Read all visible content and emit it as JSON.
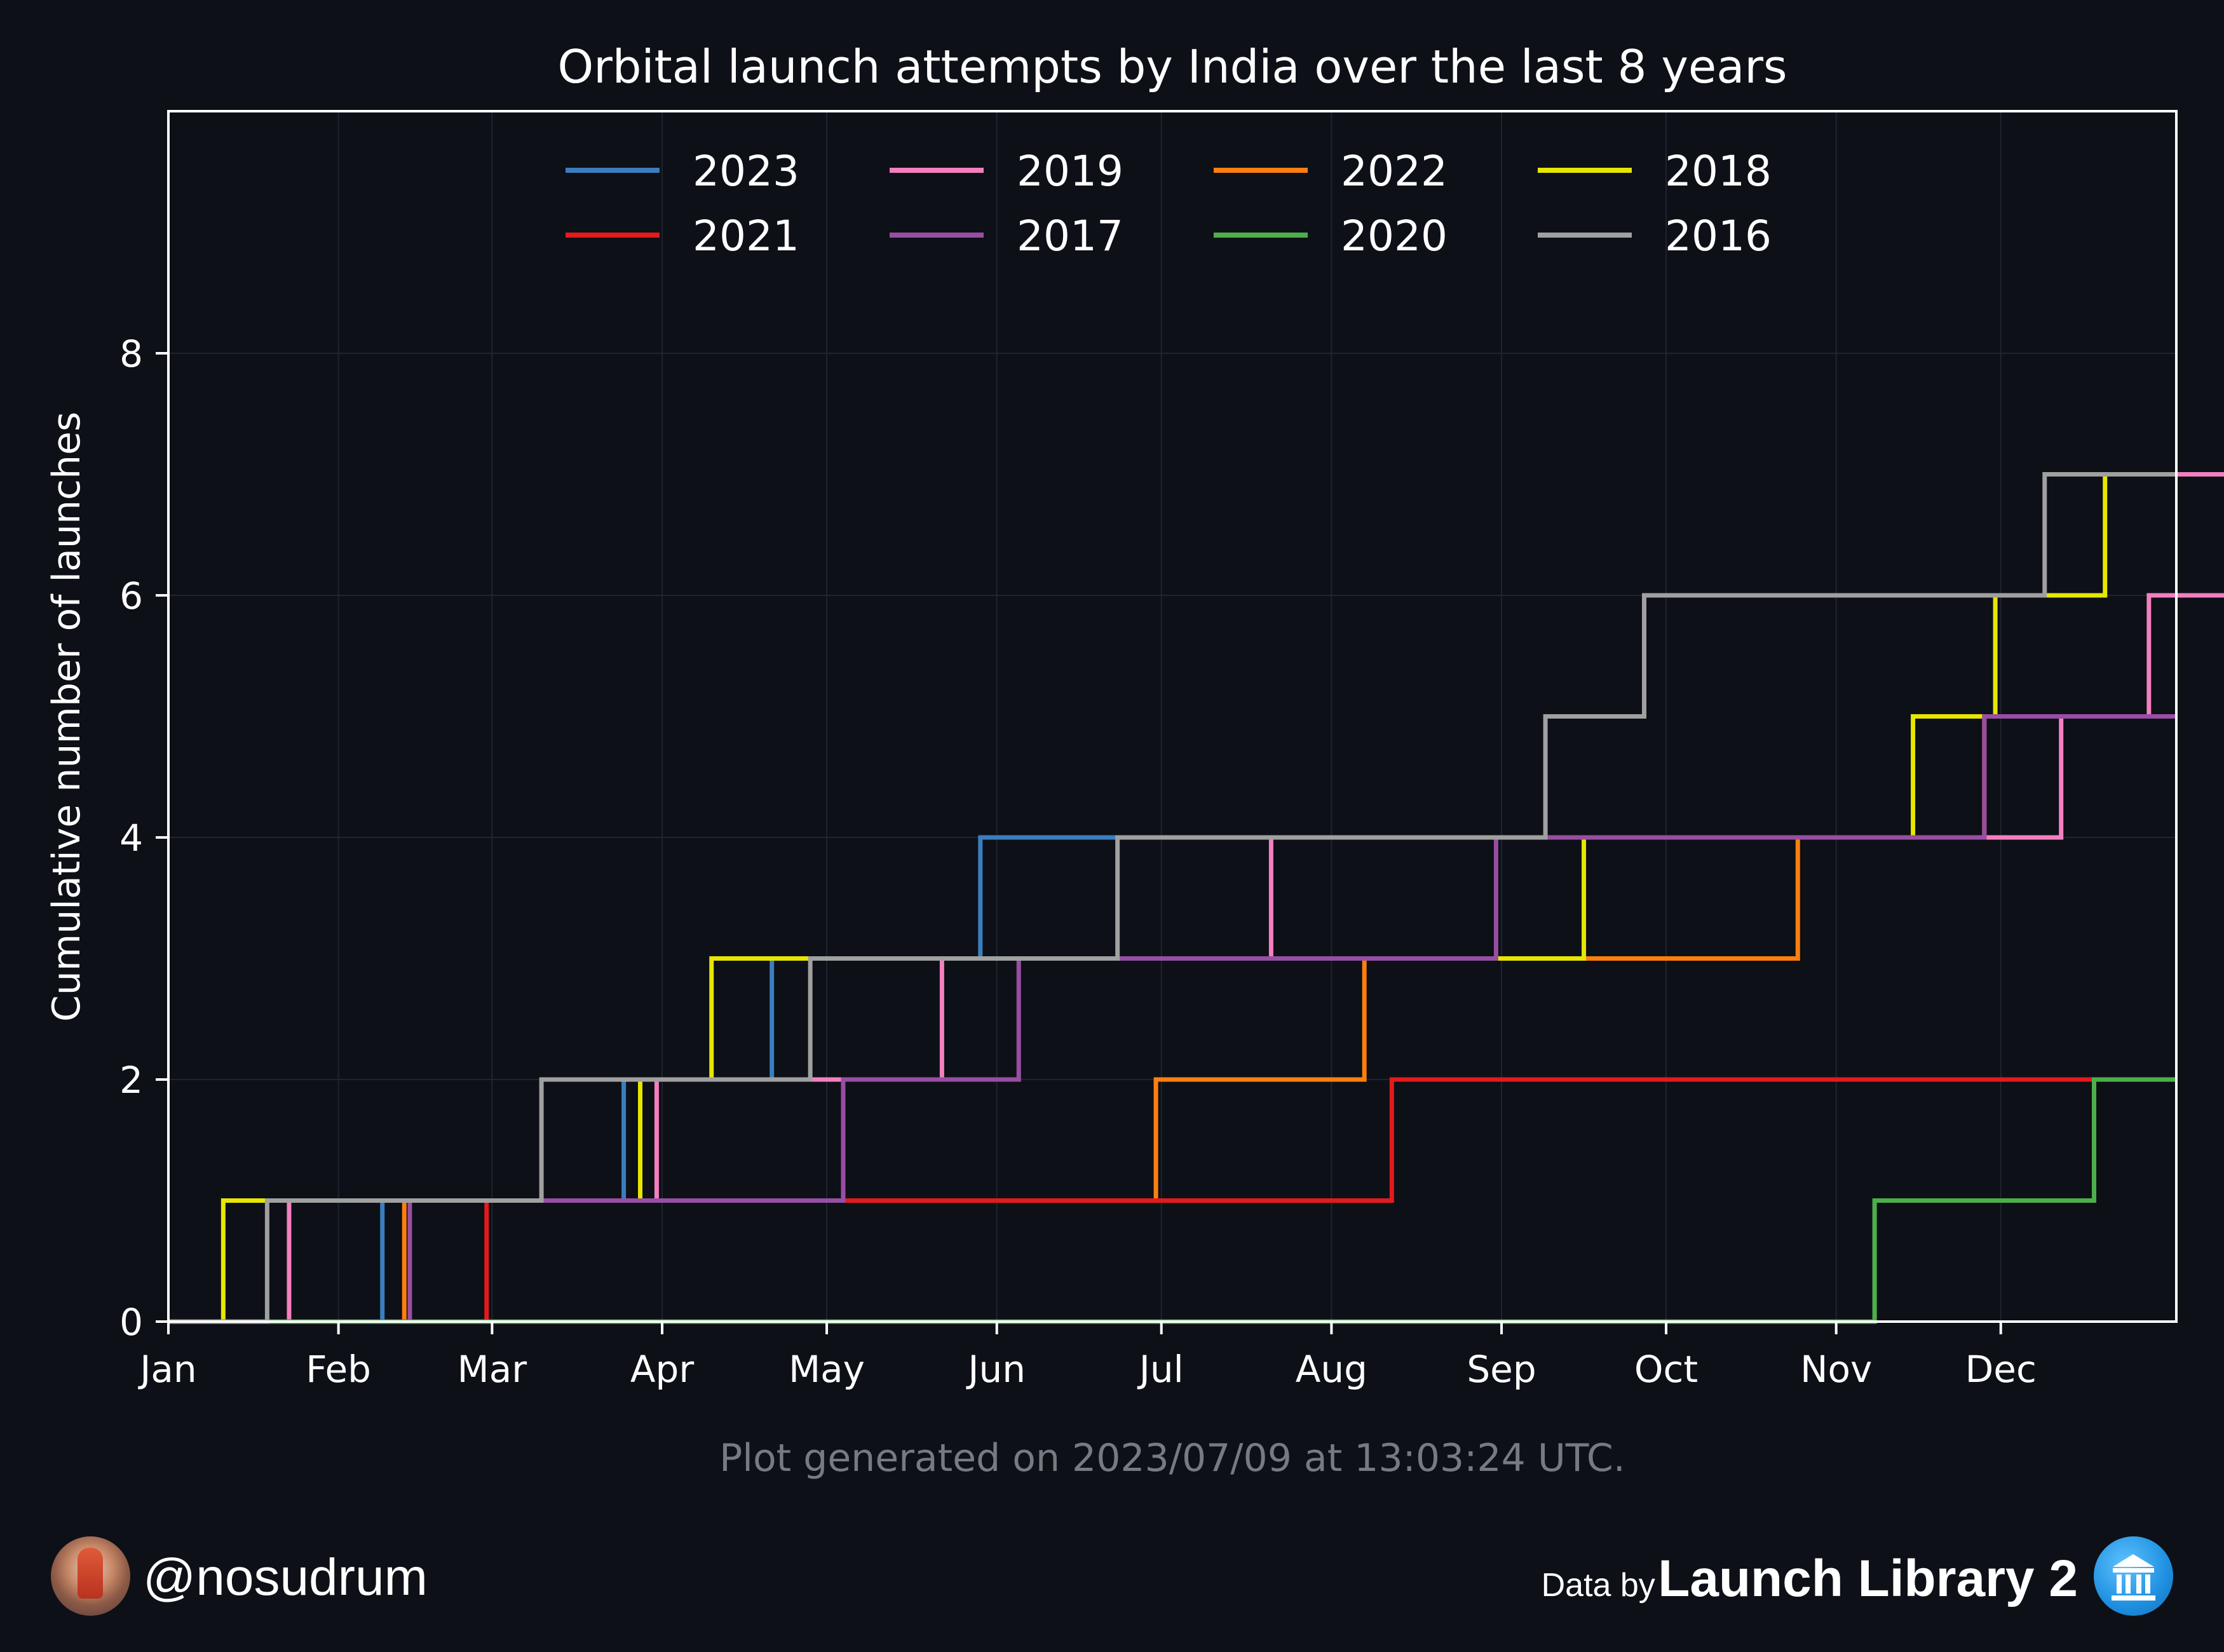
{
  "chart_data": {
    "type": "line",
    "step": "post",
    "title": "Orbital launch attempts by India over the last 8 years",
    "xlabel": "",
    "ylabel": "Cumulative number of launches",
    "x_unit": "day of year",
    "xlim": [
      0,
      366
    ],
    "ylim": [
      0,
      10
    ],
    "yticks": [
      0,
      2,
      4,
      6,
      8
    ],
    "xticks": [
      {
        "label": "Jan",
        "x": 0
      },
      {
        "label": "Feb",
        "x": 31
      },
      {
        "label": "Mar",
        "x": 59
      },
      {
        "label": "Apr",
        "x": 90
      },
      {
        "label": "May",
        "x": 120
      },
      {
        "label": "Jun",
        "x": 151
      },
      {
        "label": "Jul",
        "x": 181
      },
      {
        "label": "Aug",
        "x": 212
      },
      {
        "label": "Sep",
        "x": 243
      },
      {
        "label": "Oct",
        "x": 273
      },
      {
        "label": "Nov",
        "x": 304
      },
      {
        "label": "Dec",
        "x": 334
      }
    ],
    "grid": true,
    "legend_position": "top-center",
    "series": [
      {
        "name": "2023",
        "color": "#3a7ebf",
        "launch_days": [
          39,
          83,
          110,
          148
        ],
        "end": 190
      },
      {
        "name": "2019",
        "color": "#f47fbf",
        "launch_days": [
          22,
          89,
          141,
          201,
          361,
          345,
          413
        ],
        "end": 366
      },
      {
        "name": "2022",
        "color": "#ff7f0e",
        "launch_days": [
          43,
          180,
          218,
          297,
          331
        ],
        "end": 366
      },
      {
        "name": "2018",
        "color": "#e6e600",
        "launch_days": [
          10,
          86,
          99,
          258,
          318,
          333,
          353
        ],
        "end": 366
      },
      {
        "name": "2021",
        "color": "#e41a1c",
        "launch_days": [
          58,
          223
        ],
        "end": 366
      },
      {
        "name": "2017",
        "color": "#984ea3",
        "launch_days": [
          44,
          123,
          155,
          242,
          331
        ],
        "end": 366
      },
      {
        "name": "2020",
        "color": "#4daf4a",
        "launch_days": [
          311,
          351
        ],
        "end": 366
      },
      {
        "name": "2016",
        "color": "#a0a0a0",
        "launch_days": [
          18,
          68,
          117,
          173,
          251,
          269,
          342
        ],
        "end": 366
      }
    ]
  },
  "footer": {
    "generated": "Plot generated on 2023/07/09 at 13:03:24 UTC.",
    "handle": "@nosudrum",
    "credit_prefix": "Data by",
    "credit_brand": "Launch Library 2"
  }
}
